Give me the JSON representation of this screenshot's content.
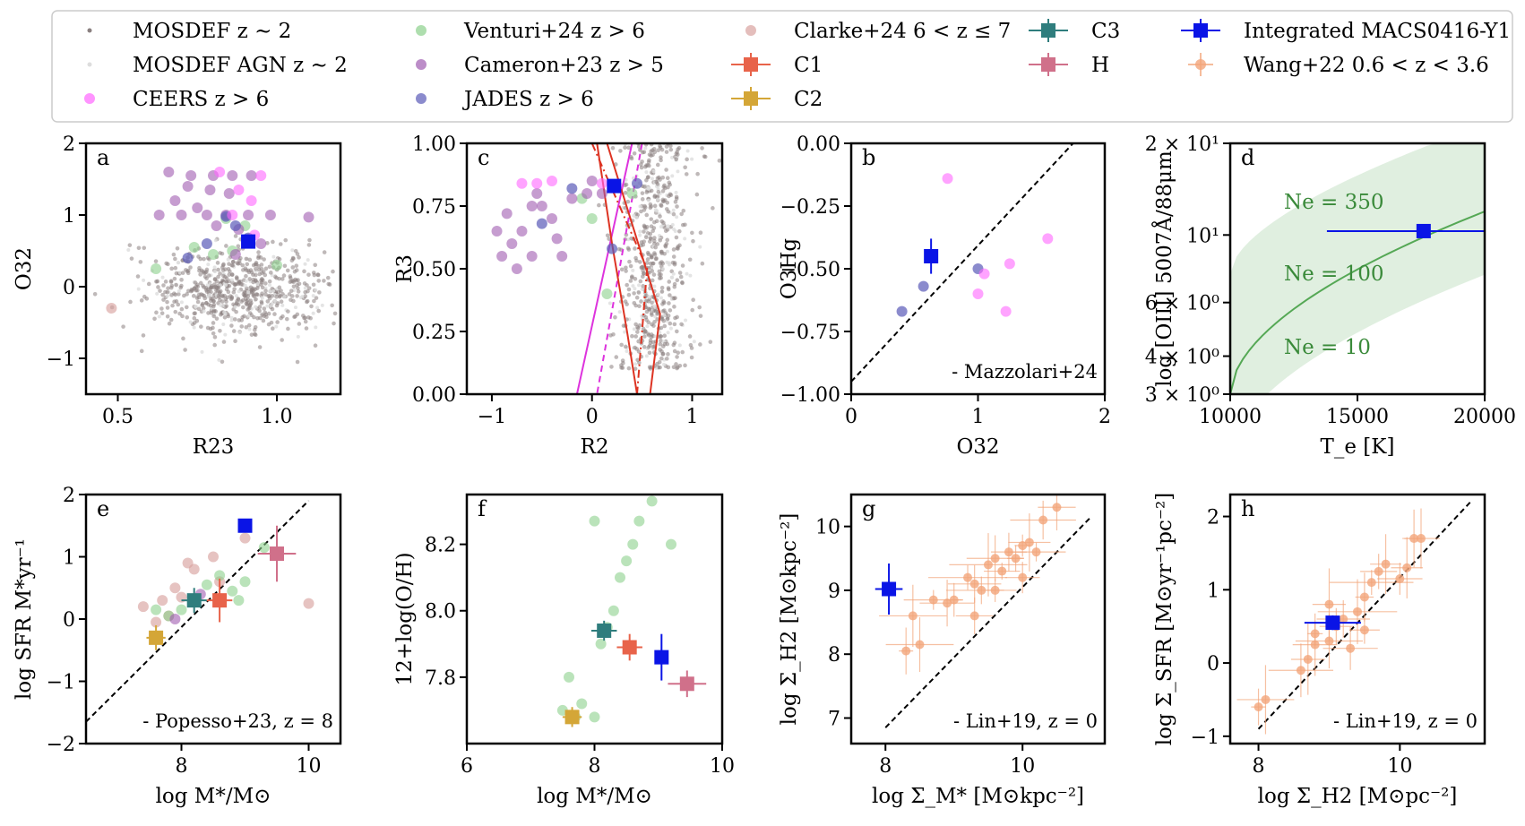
{
  "legend": {
    "entries": [
      {
        "label": "MOSDEF z ∼ 2",
        "marker": "dot",
        "color": "#8a8080"
      },
      {
        "label": "MOSDEF AGN z ∼ 2",
        "marker": "dot",
        "color": "#dddddd"
      },
      {
        "label": "CEERS z > 6",
        "marker": "circle",
        "color": "#ff66ff"
      },
      {
        "label": "Venturi+24 z > 6",
        "marker": "circle",
        "color": "#8cd08c"
      },
      {
        "label": "Cameron+23 z > 5",
        "marker": "circle",
        "color": "#a05cb0"
      },
      {
        "label": "JADES z > 6",
        "marker": "circle",
        "color": "#5a5ab8"
      },
      {
        "label": "Clarke+24 6 < z ≤ 7",
        "marker": "circle",
        "color": "#d9a3a0"
      },
      {
        "label": "C1",
        "marker": "square-err",
        "color": "#e8634a"
      },
      {
        "label": "C2",
        "marker": "square-err",
        "color": "#d4a637"
      },
      {
        "label": "C3",
        "marker": "square-err",
        "color": "#2f7d7d"
      },
      {
        "label": "H",
        "marker": "square-err",
        "color": "#d0708a"
      },
      {
        "label": "Integrated MACS0416-Y1",
        "marker": "square-err",
        "color": "#0a14e6"
      },
      {
        "label": "Wang+22 0.6 < z < 3.6",
        "marker": "diamond-err",
        "color": "#f2a57a"
      }
    ]
  },
  "colors": {
    "mosdef": "#8a8080",
    "agn": "#dddddd",
    "ceers": "#ff66ff",
    "venturi": "#8cd08c",
    "cameron": "#a05cb0",
    "jades": "#5a5ab8",
    "clarke": "#d9a3a0",
    "c1": "#e8634a",
    "c2": "#d4a637",
    "c3": "#2f7d7d",
    "h": "#d0708a",
    "integrated": "#0a14e6",
    "wang": "#f2a57a",
    "red_line": "#dd3322",
    "mag_line": "#dd33dd",
    "ne_green": "#55a855"
  },
  "chart_data": [
    {
      "panel": "a",
      "type": "scatter",
      "xlabel": "R23",
      "ylabel": "O32",
      "xlim": [
        0.4,
        1.2
      ],
      "ylim": [
        -1.5,
        2
      ],
      "xticks": [
        "0.5",
        "1.0"
      ],
      "yticks": [
        "−1",
        "0",
        "1",
        "2"
      ],
      "cloud": {
        "name": "MOSDEF",
        "center": [
          0.88,
          -0.05
        ],
        "spread": [
          0.14,
          0.32
        ],
        "count": 700
      },
      "ceers": [
        [
          0.82,
          1.6
        ],
        [
          0.95,
          1.55
        ],
        [
          0.88,
          1.35
        ],
        [
          0.92,
          1.2
        ],
        [
          0.86,
          1.0
        ],
        [
          0.93,
          0.72
        ]
      ],
      "cameron": [
        [
          0.66,
          1.6
        ],
        [
          0.73,
          1.55
        ],
        [
          0.8,
          1.55
        ],
        [
          0.86,
          1.55
        ],
        [
          0.92,
          1.55
        ],
        [
          0.72,
          1.4
        ],
        [
          0.79,
          1.35
        ],
        [
          0.85,
          1.3
        ],
        [
          0.68,
          1.2
        ],
        [
          0.75,
          1.1
        ],
        [
          0.63,
          1.0
        ],
        [
          0.7,
          1.0
        ],
        [
          0.78,
          1.0
        ],
        [
          0.84,
          1.0
        ],
        [
          0.91,
          1.0
        ],
        [
          0.98,
          1.0
        ],
        [
          1.1,
          0.97
        ],
        [
          0.81,
          0.85
        ],
        [
          0.88,
          0.8
        ],
        [
          0.95,
          0.6
        ],
        [
          0.87,
          0.45
        ]
      ],
      "venturi": [
        [
          0.62,
          0.25
        ],
        [
          0.74,
          0.55
        ],
        [
          0.8,
          0.45
        ],
        [
          0.86,
          0.5
        ],
        [
          1.0,
          0.3
        ],
        [
          0.84,
          0.95
        ],
        [
          0.9,
          0.85
        ]
      ],
      "jades": [
        [
          0.84,
          0.98
        ],
        [
          0.87,
          0.85
        ],
        [
          0.91,
          0.68
        ],
        [
          0.72,
          0.4
        ],
        [
          0.78,
          0.6
        ]
      ],
      "clarke": [
        [
          0.48,
          -0.3
        ]
      ],
      "integrated": {
        "x": 0.91,
        "y": 0.63
      }
    },
    {
      "panel": "c",
      "type": "scatter",
      "xlabel": "R2",
      "ylabel": "R3",
      "xlim": [
        -1.25,
        1.3
      ],
      "ylim": [
        0,
        1
      ],
      "xticks": [
        "−1",
        "0",
        "1"
      ],
      "yticks": [
        "0.00",
        "0.25",
        "0.50",
        "0.75",
        "1.00"
      ],
      "cloud": {
        "name": "MOSDEF",
        "center": [
          0.62,
          0.48
        ],
        "spread": [
          0.22,
          0.22
        ],
        "count": 650
      },
      "cameron": [
        [
          -0.95,
          0.65
        ],
        [
          -0.9,
          0.55
        ],
        [
          -0.8,
          0.6
        ],
        [
          -0.85,
          0.72
        ],
        [
          -0.75,
          0.5
        ],
        [
          -0.7,
          0.65
        ],
        [
          -0.6,
          0.55
        ],
        [
          -0.55,
          0.8
        ],
        [
          -0.5,
          0.75
        ],
        [
          -0.4,
          0.7
        ],
        [
          -0.35,
          0.62
        ],
        [
          -0.6,
          0.75
        ],
        [
          -0.2,
          0.78
        ],
        [
          0.1,
          0.8
        ],
        [
          -0.05,
          0.8
        ],
        [
          0.0,
          0.85
        ],
        [
          -0.3,
          0.55
        ]
      ],
      "ceers": [
        [
          -0.7,
          0.84
        ],
        [
          -0.55,
          0.84
        ],
        [
          -0.4,
          0.85
        ],
        [
          0.1,
          0.84
        ],
        [
          0.25,
          0.83
        ]
      ],
      "venturi": [
        [
          -0.1,
          0.78
        ],
        [
          0.0,
          0.7
        ],
        [
          0.15,
          0.4
        ],
        [
          0.4,
          0.8
        ]
      ],
      "jades": [
        [
          -0.5,
          0.68
        ],
        [
          -0.2,
          0.82
        ],
        [
          0.2,
          0.58
        ],
        [
          0.45,
          0.84
        ]
      ],
      "red_solid": [
        [
          0.15,
          1.0
        ],
        [
          0.68,
          0.32
        ],
        [
          0.58,
          0.0
        ]
      ],
      "red_solid2": [
        [
          0.05,
          1.0
        ],
        [
          0.2,
          0.6
        ],
        [
          0.35,
          0.25
        ],
        [
          0.45,
          0.0
        ]
      ],
      "red_dash": [
        [
          0.0,
          1.0
        ],
        [
          0.55,
          0.5
        ],
        [
          0.45,
          0.0
        ]
      ],
      "mag_solid": [
        [
          0.4,
          1.0
        ],
        [
          -0.15,
          0.0
        ]
      ],
      "mag_dash": [
        [
          0.5,
          1.0
        ],
        [
          0.05,
          0.0
        ]
      ],
      "integrated": {
        "x": 0.22,
        "y": 0.83
      }
    },
    {
      "panel": "b",
      "type": "scatter",
      "xlabel": "O32",
      "ylabel": "O3Hg",
      "xlim": [
        0,
        2
      ],
      "ylim": [
        -1,
        0
      ],
      "xticks": [
        "0",
        "1",
        "2"
      ],
      "yticks": [
        "−1.00",
        "−0.75",
        "−0.50",
        "−0.25",
        "0.00"
      ],
      "ceers": [
        [
          0.76,
          -0.14
        ],
        [
          1.05,
          -0.52
        ],
        [
          1.0,
          -0.6
        ],
        [
          1.25,
          -0.48
        ],
        [
          1.55,
          -0.38
        ],
        [
          1.22,
          -0.67
        ]
      ],
      "jades": [
        [
          0.4,
          -0.67
        ],
        [
          0.57,
          -0.57
        ],
        [
          1.0,
          -0.5
        ]
      ],
      "reference_line": {
        "label": "- Mazzolari+24",
        "x": [
          0,
          1.75
        ],
        "y": [
          -0.95,
          0.0
        ]
      },
      "integrated": {
        "x": 0.63,
        "y": -0.45,
        "yerr": 0.07
      }
    },
    {
      "panel": "d",
      "type": "line",
      "xlabel": "T_e [K]",
      "ylabel": "log [OIII] 5007Å/88μm",
      "xlim": [
        10000,
        20000
      ],
      "ylim": [
        3,
        20
      ],
      "yscale": "log",
      "xticks": [
        "10000",
        "15000",
        "20000"
      ],
      "yticks": [
        "3 × 10⁰",
        "4 × 10⁰",
        "6 × 10⁰",
        "10¹",
        "2 × 10¹"
      ],
      "curves": [
        {
          "name": "Ne = 10"
        },
        {
          "name": "Ne = 100"
        },
        {
          "name": "Ne = 350"
        }
      ],
      "integrated": {
        "x": 17600,
        "y": 10.3,
        "xerr": [
          3800,
          2400
        ]
      }
    },
    {
      "panel": "e",
      "type": "scatter",
      "xlabel": "log M*/M⊙",
      "ylabel": "log SFR M*yr⁻¹",
      "xlim": [
        6.5,
        10.5
      ],
      "ylim": [
        -2,
        2
      ],
      "xticks": [
        "8",
        "10"
      ],
      "yticks": [
        "−2",
        "−1",
        "0",
        "1",
        "2"
      ],
      "reference_line": {
        "label": "- Popesso+23, z = 8",
        "x": [
          6.5,
          10.0
        ],
        "y": [
          -1.65,
          1.9
        ]
      },
      "clarke": [
        [
          7.4,
          0.2
        ],
        [
          7.6,
          -0.05
        ],
        [
          7.8,
          0.05
        ],
        [
          7.9,
          0.5
        ],
        [
          8.0,
          0.35
        ],
        [
          8.1,
          0.9
        ],
        [
          8.2,
          0.8
        ],
        [
          8.5,
          1.0
        ],
        [
          8.6,
          0.6
        ],
        [
          9.0,
          1.3
        ],
        [
          10.0,
          0.25
        ],
        [
          7.7,
          0.3
        ]
      ],
      "venturi": [
        [
          7.6,
          0.15
        ],
        [
          7.8,
          0.05
        ],
        [
          8.0,
          0.15
        ],
        [
          8.2,
          0.3
        ],
        [
          8.4,
          0.55
        ],
        [
          8.6,
          0.7
        ],
        [
          8.8,
          0.45
        ],
        [
          9.0,
          0.6
        ],
        [
          9.3,
          1.15
        ],
        [
          8.9,
          0.3
        ]
      ],
      "cameron": [
        [
          7.9,
          0.0
        ],
        [
          8.3,
          0.4
        ]
      ],
      "C1": {
        "x": 8.6,
        "y": 0.3,
        "xerr": 0.2,
        "yerr": 0.35
      },
      "C2": {
        "x": 7.6,
        "y": -0.3,
        "xerr": 0.15,
        "yerr": 0.2
      },
      "C3": {
        "x": 8.2,
        "y": 0.3,
        "xerr": 0.2,
        "yerr": 0.2
      },
      "H": {
        "x": 9.5,
        "y": 1.05,
        "xerr": 0.3,
        "yerr": 0.45
      },
      "integrated": {
        "x": 9.0,
        "y": 1.5
      }
    },
    {
      "panel": "f",
      "type": "scatter",
      "xlabel": "log M*/M⊙",
      "ylabel": "12+log(O/H)",
      "xlim": [
        6,
        10
      ],
      "ylim": [
        7.6,
        8.35
      ],
      "xticks": [
        "6",
        "8",
        "10"
      ],
      "yticks": [
        "7.8",
        "8.0",
        "8.2"
      ],
      "venturi": [
        [
          7.6,
          7.8
        ],
        [
          7.5,
          7.7
        ],
        [
          7.8,
          7.72
        ],
        [
          7.7,
          7.68
        ],
        [
          8.0,
          7.68
        ],
        [
          8.1,
          7.9
        ],
        [
          8.2,
          7.95
        ],
        [
          8.3,
          8.0
        ],
        [
          8.4,
          8.1
        ],
        [
          8.5,
          8.15
        ],
        [
          8.6,
          8.2
        ],
        [
          8.7,
          8.27
        ],
        [
          8.9,
          8.33
        ],
        [
          8.0,
          8.27
        ],
        [
          9.2,
          8.2
        ]
      ],
      "C1": {
        "x": 8.55,
        "y": 7.89,
        "xerr": 0.2,
        "yerr": 0.04
      },
      "C2": {
        "x": 7.65,
        "y": 7.68,
        "xerr": 0.15,
        "yerr": 0.03
      },
      "C3": {
        "x": 8.15,
        "y": 7.94,
        "xerr": 0.2,
        "yerr": 0.03
      },
      "H": {
        "x": 9.45,
        "y": 7.78,
        "xerr": 0.3,
        "yerr": 0.04
      },
      "integrated": {
        "x": 9.05,
        "y": 7.86,
        "xerr": 0.0,
        "yerr": 0.07
      }
    },
    {
      "panel": "g",
      "type": "scatter",
      "xlabel": "log Σ_M* [M⊙kpc⁻²]",
      "ylabel": "log Σ_H2 [M⊙kpc⁻²]",
      "xlim": [
        7.5,
        11.2
      ],
      "ylim": [
        6.6,
        10.5
      ],
      "xticks": [
        "8",
        "10"
      ],
      "yticks": [
        "7",
        "8",
        "9",
        "10"
      ],
      "reference_line": {
        "label": "- Lin+19, z = 0",
        "x": [
          8.0,
          11.0
        ],
        "y": [
          6.85,
          10.15
        ]
      },
      "wang": [
        [
          8.3,
          8.05
        ],
        [
          8.4,
          8.6
        ],
        [
          8.5,
          8.15
        ],
        [
          8.7,
          8.85
        ],
        [
          8.9,
          8.8
        ],
        [
          9.0,
          8.85
        ],
        [
          9.2,
          9.2
        ],
        [
          9.3,
          9.1
        ],
        [
          9.4,
          9.0
        ],
        [
          9.5,
          9.4
        ],
        [
          9.6,
          9.5
        ],
        [
          9.7,
          9.3
        ],
        [
          9.8,
          9.6
        ],
        [
          9.9,
          9.5
        ],
        [
          10.0,
          9.7
        ],
        [
          10.1,
          9.75
        ],
        [
          10.2,
          9.6
        ],
        [
          10.3,
          10.1
        ],
        [
          10.5,
          10.3
        ],
        [
          9.3,
          8.6
        ],
        [
          9.6,
          9.0
        ],
        [
          10.0,
          9.2
        ]
      ],
      "integrated": {
        "x": 8.05,
        "y": 9.02,
        "xerr": 0.2,
        "yerr": 0.4
      }
    },
    {
      "panel": "h",
      "type": "scatter",
      "xlabel": "log Σ_H2 [M⊙pc⁻²]",
      "ylabel": "log Σ_SFR [M⊙yr⁻¹pc⁻²]",
      "xlim": [
        7.6,
        11.2
      ],
      "ylim": [
        -1.1,
        2.3
      ],
      "xticks": [
        "8",
        "10"
      ],
      "yticks": [
        "−1",
        "0",
        "1",
        "2"
      ],
      "reference_line": {
        "label": "- Lin+19, z = 0",
        "x": [
          8.0,
          11.0
        ],
        "y": [
          -0.9,
          2.2
        ]
      },
      "wang": [
        [
          8.0,
          -0.6
        ],
        [
          8.1,
          -0.5
        ],
        [
          8.6,
          -0.1
        ],
        [
          8.7,
          0.05
        ],
        [
          8.8,
          0.25
        ],
        [
          8.8,
          0.4
        ],
        [
          9.0,
          0.3
        ],
        [
          9.1,
          0.5
        ],
        [
          9.2,
          0.6
        ],
        [
          9.4,
          0.7
        ],
        [
          9.5,
          0.9
        ],
        [
          9.6,
          1.1
        ],
        [
          9.7,
          1.25
        ],
        [
          9.8,
          1.35
        ],
        [
          10.0,
          1.15
        ],
        [
          10.1,
          1.3
        ],
        [
          10.2,
          1.7
        ],
        [
          10.3,
          1.7
        ],
        [
          9.3,
          0.2
        ],
        [
          9.5,
          0.45
        ],
        [
          9.0,
          0.8
        ]
      ],
      "integrated": {
        "x": 9.05,
        "y": 0.55,
        "xerr": 0.4,
        "yerr": 0.1
      }
    }
  ]
}
